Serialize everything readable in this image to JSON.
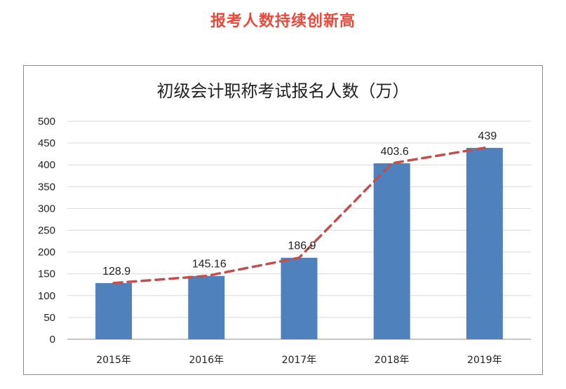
{
  "page": {
    "headline": "报考人数持续创新高"
  },
  "chart_data": {
    "type": "bar",
    "title": "初级会计职称考试报名人数（万）",
    "categories": [
      "2015年",
      "2016年",
      "2017年",
      "2018年",
      "2019年"
    ],
    "values": [
      128.9,
      145.16,
      186.9,
      403.6,
      439
    ],
    "data_labels": [
      "128.9",
      "145.16",
      "186.9",
      "403.6",
      "439"
    ],
    "yticks": [
      "0",
      "50",
      "100",
      "150",
      "200",
      "250",
      "300",
      "350",
      "400",
      "450",
      "500"
    ],
    "ylim": [
      0,
      500
    ],
    "xlabel": "",
    "ylabel": "",
    "grid": true,
    "legend": "none",
    "trend_line": {
      "style": "dashed",
      "color": "#c0504d"
    },
    "bar_color": "#4f81bd"
  }
}
